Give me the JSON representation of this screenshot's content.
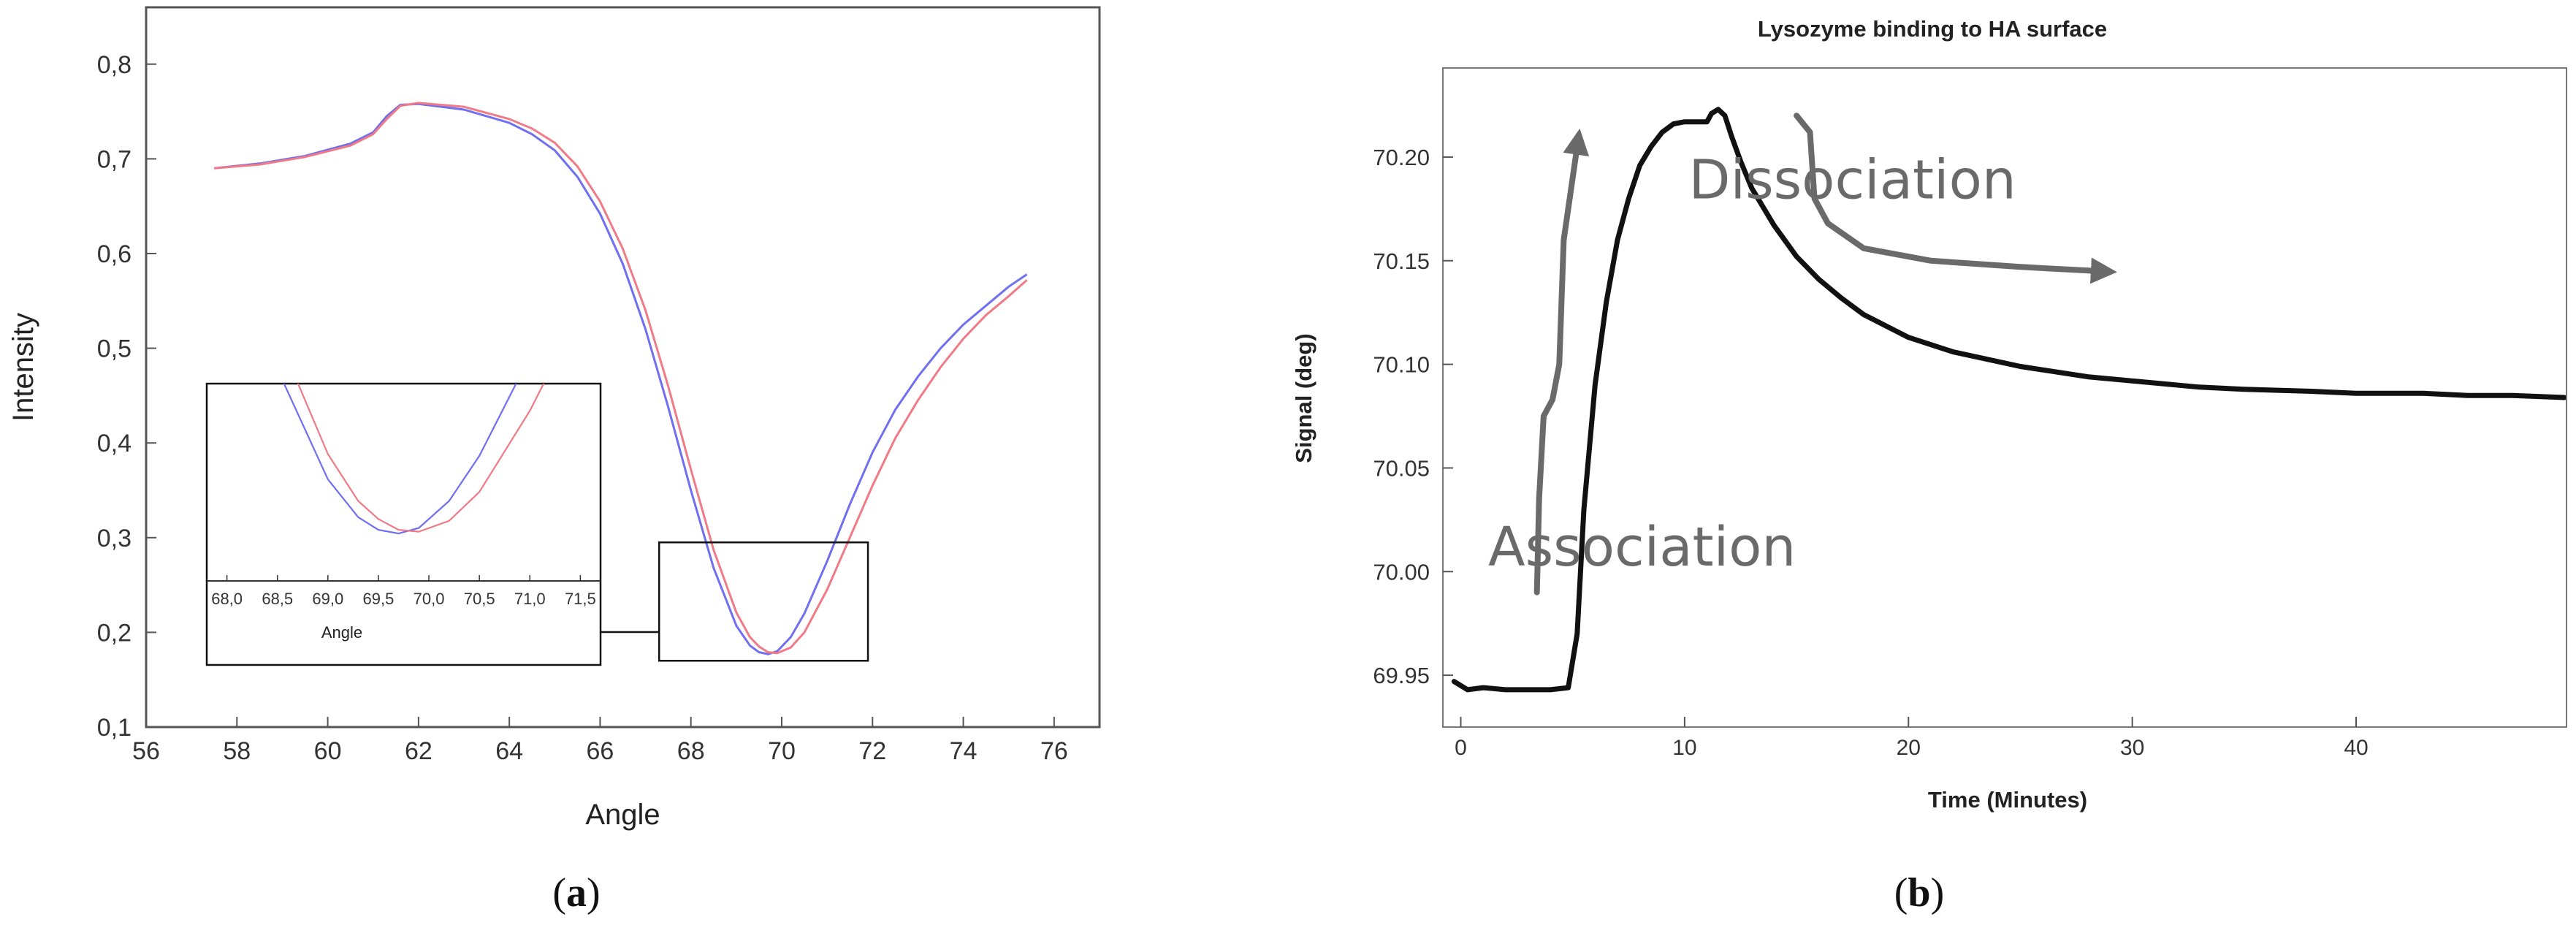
{
  "panels": {
    "a": {
      "caption_open": "(",
      "caption_letter": "a",
      "caption_close": ")"
    },
    "b": {
      "caption_open": "(",
      "caption_letter": "b",
      "caption_close": ")"
    }
  },
  "chart_data": [
    {
      "id": "a",
      "type": "line",
      "title": "",
      "xlabel": "Angle",
      "ylabel": "Intensity",
      "xlim": [
        56,
        77
      ],
      "ylim": [
        0.1,
        0.86
      ],
      "xticks": [
        56,
        58,
        60,
        62,
        64,
        66,
        68,
        70,
        72,
        74,
        76
      ],
      "xtick_labels": [
        "56",
        "58",
        "60",
        "62",
        "64",
        "66",
        "68",
        "70",
        "72",
        "74",
        "76"
      ],
      "yticks": [
        0.1,
        0.2,
        0.3,
        0.4,
        0.5,
        0.6,
        0.7,
        0.8
      ],
      "ytick_labels": [
        "0,1",
        "0,2",
        "0,3",
        "0,4",
        "0,5",
        "0,6",
        "0,7",
        "0,8"
      ],
      "grid": false,
      "colors": {
        "series1": "#6f6ff0",
        "series2": "#f07a86"
      },
      "series": [
        {
          "key": "blue",
          "x": [
            57.5,
            58.5,
            59.5,
            60.5,
            61.0,
            61.3,
            61.6,
            62.0,
            63.0,
            64.0,
            64.5,
            65.0,
            65.5,
            66.0,
            66.5,
            67.0,
            67.5,
            68.0,
            68.5,
            69.0,
            69.3,
            69.5,
            69.7,
            69.9,
            70.2,
            70.5,
            71.0,
            71.5,
            72.0,
            72.5,
            73.0,
            73.5,
            74.0,
            74.5,
            75.0,
            75.4
          ],
          "y": [
            0.69,
            0.695,
            0.703,
            0.716,
            0.728,
            0.745,
            0.757,
            0.758,
            0.752,
            0.738,
            0.726,
            0.709,
            0.681,
            0.642,
            0.589,
            0.52,
            0.438,
            0.35,
            0.268,
            0.207,
            0.186,
            0.179,
            0.177,
            0.18,
            0.195,
            0.22,
            0.275,
            0.335,
            0.39,
            0.435,
            0.47,
            0.5,
            0.525,
            0.545,
            0.565,
            0.578
          ]
        },
        {
          "key": "red",
          "x": [
            57.5,
            58.5,
            59.5,
            60.5,
            61.0,
            61.3,
            61.6,
            62.0,
            63.0,
            64.0,
            64.5,
            65.0,
            65.5,
            66.0,
            66.5,
            67.0,
            67.5,
            68.0,
            68.5,
            69.0,
            69.3,
            69.5,
            69.7,
            69.9,
            70.2,
            70.5,
            71.0,
            71.5,
            72.0,
            72.5,
            73.0,
            73.5,
            74.0,
            74.5,
            75.0,
            75.4
          ],
          "y": [
            0.69,
            0.694,
            0.702,
            0.714,
            0.726,
            0.742,
            0.756,
            0.759,
            0.755,
            0.742,
            0.732,
            0.717,
            0.692,
            0.655,
            0.605,
            0.54,
            0.46,
            0.372,
            0.287,
            0.221,
            0.195,
            0.185,
            0.179,
            0.178,
            0.184,
            0.2,
            0.245,
            0.3,
            0.355,
            0.405,
            0.445,
            0.48,
            0.51,
            0.535,
            0.555,
            0.572
          ]
        }
      ],
      "inset": {
        "xlabel": "Angle",
        "xlim": [
          67.8,
          71.7
        ],
        "ylim": [
          0.175,
          0.26
        ],
        "xticks": [
          68.0,
          68.5,
          69.0,
          69.5,
          70.0,
          70.5,
          71.0,
          71.5
        ],
        "xtick_labels": [
          "68,0",
          "68,5",
          "69,0",
          "69,5",
          "70,0",
          "70,5",
          "71,0",
          "71,5"
        ],
        "zoom_region": {
          "xlim": [
            67.3,
            71.9
          ],
          "ylim": [
            0.17,
            0.295
          ]
        }
      }
    },
    {
      "id": "b",
      "type": "line",
      "title": "Lysozyme binding to HA surface",
      "xlabel": "Time (Minutes)",
      "ylabel": "Signal (deg)",
      "xlim": [
        -0.8,
        49.4
      ],
      "ylim": [
        69.925,
        70.243
      ],
      "xticks": [
        0,
        10,
        20,
        30,
        40
      ],
      "xtick_labels": [
        "0",
        "10",
        "20",
        "30",
        "40"
      ],
      "yticks": [
        69.95,
        70.0,
        70.05,
        70.1,
        70.15,
        70.2
      ],
      "ytick_labels": [
        "69.95",
        "70.00",
        "70.05",
        "70.10",
        "70.15",
        "70.20"
      ],
      "grid": false,
      "colors": {
        "series": "#111111",
        "annotation": "#6a6a6a"
      },
      "series": [
        {
          "key": "signal",
          "x": [
            -0.3,
            0.3,
            1.0,
            2.0,
            3.0,
            4.0,
            4.8,
            5.2,
            5.5,
            6.0,
            6.5,
            7.0,
            7.5,
            8.0,
            8.5,
            9.0,
            9.5,
            10.0,
            10.5,
            11.0,
            11.2,
            11.5,
            11.8,
            12.1,
            12.5,
            13.0,
            14.0,
            15.0,
            16.0,
            17.0,
            18.0,
            20.0,
            22.0,
            25.0,
            28.0,
            30.0,
            33.0,
            35.0,
            38.0,
            40.0,
            43.0,
            45.0,
            47.0,
            49.3
          ],
          "y": [
            69.947,
            69.943,
            69.944,
            69.943,
            69.943,
            69.943,
            69.944,
            69.97,
            70.03,
            70.09,
            70.13,
            70.16,
            70.18,
            70.196,
            70.205,
            70.212,
            70.216,
            70.217,
            70.217,
            70.217,
            70.221,
            70.223,
            70.22,
            70.21,
            70.198,
            70.185,
            70.167,
            70.152,
            70.141,
            70.132,
            70.124,
            70.113,
            70.106,
            70.099,
            70.094,
            70.092,
            70.089,
            70.088,
            70.087,
            70.086,
            70.086,
            70.085,
            70.085,
            70.084
          ]
        }
      ],
      "annotations": [
        {
          "key": "association",
          "text": "Association",
          "x": 8.1,
          "y": 70.003
        },
        {
          "key": "dissociation",
          "text": "Dissociation",
          "x": 17.5,
          "y": 70.18
        }
      ],
      "arrows": [
        {
          "key": "association",
          "points": [
            [
              3.4,
              69.99
            ],
            [
              3.5,
              70.035
            ],
            [
              3.7,
              70.075
            ],
            [
              4.1,
              70.083
            ],
            [
              4.4,
              70.1
            ],
            [
              4.6,
              70.16
            ],
            [
              5.2,
              70.205
            ]
          ]
        },
        {
          "key": "dissociation",
          "points": [
            [
              15.0,
              70.22
            ],
            [
              15.6,
              70.212
            ],
            [
              15.8,
              70.18
            ],
            [
              16.4,
              70.168
            ],
            [
              18.0,
              70.156
            ],
            [
              21.0,
              70.15
            ],
            [
              25.0,
              70.147
            ],
            [
              28.5,
              70.145
            ]
          ]
        }
      ]
    }
  ]
}
